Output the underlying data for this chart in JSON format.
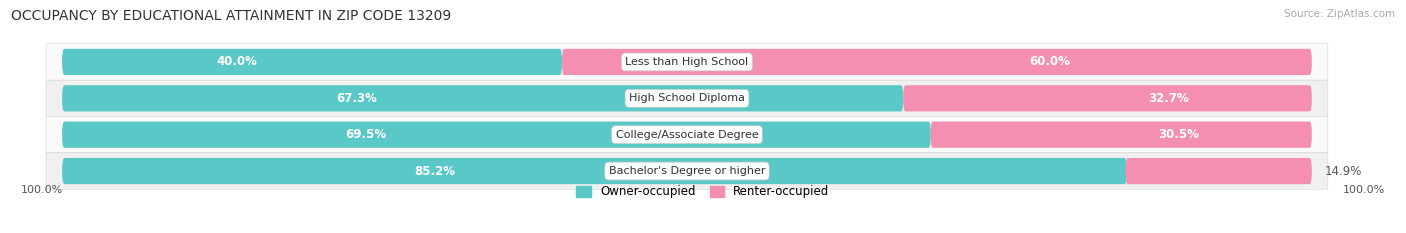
{
  "title": "OCCUPANCY BY EDUCATIONAL ATTAINMENT IN ZIP CODE 13209",
  "source": "Source: ZipAtlas.com",
  "categories": [
    "Less than High School",
    "High School Diploma",
    "College/Associate Degree",
    "Bachelor's Degree or higher"
  ],
  "owner_pct": [
    40.0,
    67.3,
    69.5,
    85.2
  ],
  "renter_pct": [
    60.0,
    32.7,
    30.5,
    14.9
  ],
  "owner_color": "#5BC8C8",
  "renter_color": "#F48FB1",
  "bg_color": "#f5f5f5",
  "bar_bg_color": "#e8e8e8",
  "row_bg_light": "#fafafa",
  "row_bg_dark": "#f0f0f0",
  "axis_label_left": "100.0%",
  "axis_label_right": "100.0%",
  "legend_owner": "Owner-occupied",
  "legend_renter": "Renter-occupied",
  "title_fontsize": 10,
  "source_fontsize": 7.5,
  "bar_height": 0.72
}
